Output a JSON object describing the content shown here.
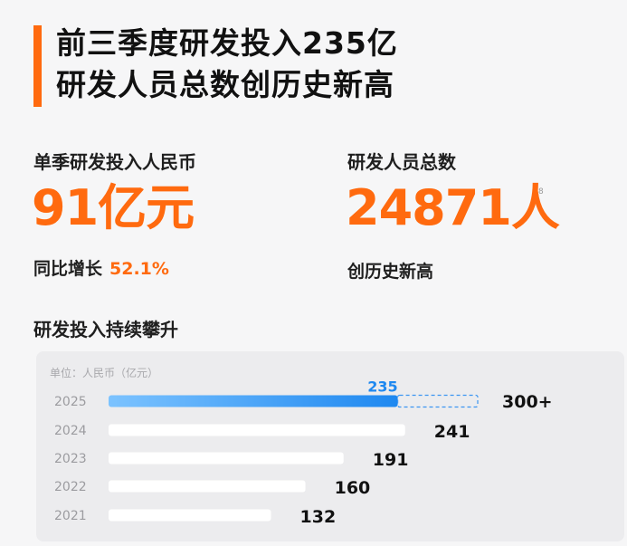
{
  "headline": {
    "line1": "前三季度研发投入235亿",
    "line2": "研发人员总数创历史新高"
  },
  "stats": [
    {
      "label": "单季研发投入人民币",
      "value": "91亿元",
      "sub_label": "同比增长",
      "sub_value": "52.1%"
    },
    {
      "label": "研发人员总数",
      "value": "24871人",
      "sub_label": "创历史新高",
      "sub_value": ""
    }
  ],
  "footnote_marker": "8",
  "section_title": "研发投入持续攀升",
  "colors": {
    "accent": "#ff6a0f",
    "bar_fill": "#ffffff",
    "bar_highlight_start": "#7cc3ff",
    "bar_highlight_end": "#1e88f0",
    "projection_dash": "#3b95f2",
    "highlight_label": "#1e88f0"
  },
  "chart_data": {
    "type": "bar",
    "orientation": "horizontal",
    "unit_label": "单位：人民币（亿元）",
    "categories": [
      "2025",
      "2024",
      "2023",
      "2022",
      "2021"
    ],
    "values": [
      235,
      241,
      191,
      160,
      132
    ],
    "value_labels": [
      "235",
      "241",
      "191",
      "160",
      "132"
    ],
    "highlight_index": 0,
    "projection": {
      "index": 0,
      "value": 300,
      "label": "300+"
    },
    "xlim": [
      0,
      300
    ],
    "grid": false,
    "legend": "none"
  }
}
